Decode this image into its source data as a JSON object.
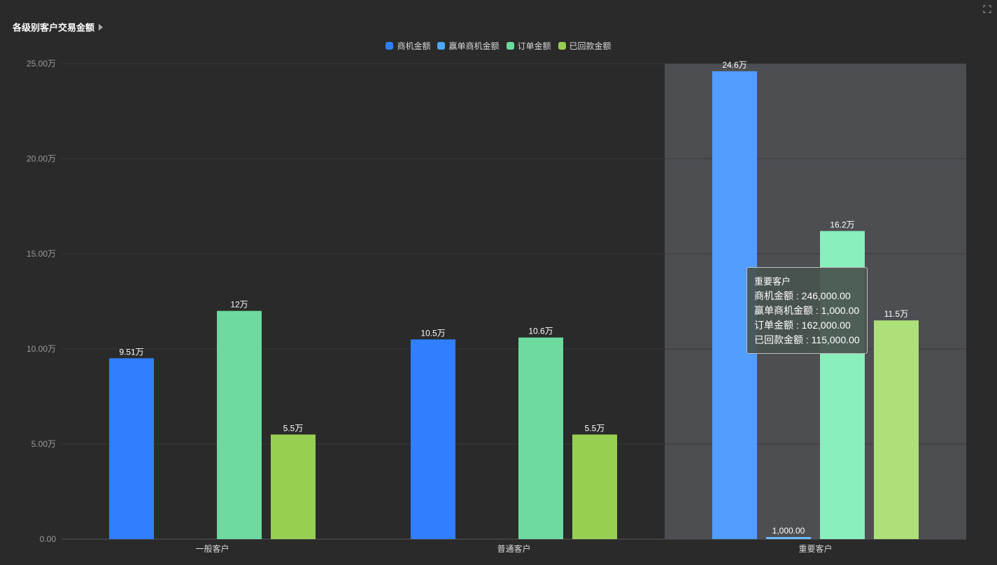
{
  "header": {
    "title": "各级别客户交易金额"
  },
  "tooltip": {
    "title": "重要客户",
    "rows": [
      "商机金额 : 246,000.00",
      "赢单商机金额 : 1,000.00",
      "订单金额 : 162,000.00",
      "已回款金额 : 115,000.00"
    ]
  },
  "chart_data": {
    "type": "bar",
    "categories": [
      "一般客户",
      "普通客户",
      "重要客户"
    ],
    "series": [
      {
        "name": "商机金额",
        "color": "#2f7fff",
        "highlight_color": "#529dff",
        "values": [
          95100,
          105000,
          246000
        ],
        "labels": [
          "9.51万",
          "10.5万",
          "24.6万"
        ]
      },
      {
        "name": "赢单商机金额",
        "color": "#4fa8f6",
        "highlight_color": "#6cbaff",
        "values": [
          0,
          0,
          1000
        ],
        "labels": [
          "",
          "",
          "1,000.00"
        ]
      },
      {
        "name": "订单金额",
        "color": "#6ddb9f",
        "highlight_color": "#88efbd",
        "values": [
          120000,
          106000,
          162000
        ],
        "labels": [
          "12万",
          "10.6万",
          "16.2万"
        ]
      },
      {
        "name": "已回款金额",
        "color": "#97cf53",
        "highlight_color": "#aee07a",
        "values": [
          55000,
          55000,
          115000
        ],
        "labels": [
          "5.5万",
          "5.5万",
          "11.5万"
        ]
      }
    ],
    "y_ticks": [
      "0.00",
      "5.00万",
      "10.00万",
      "15.00万",
      "20.00万",
      "25.00万"
    ],
    "ylim": [
      0,
      250000
    ],
    "highlighted_category": "重要客户",
    "grid": true,
    "legend_position": "top-center"
  }
}
